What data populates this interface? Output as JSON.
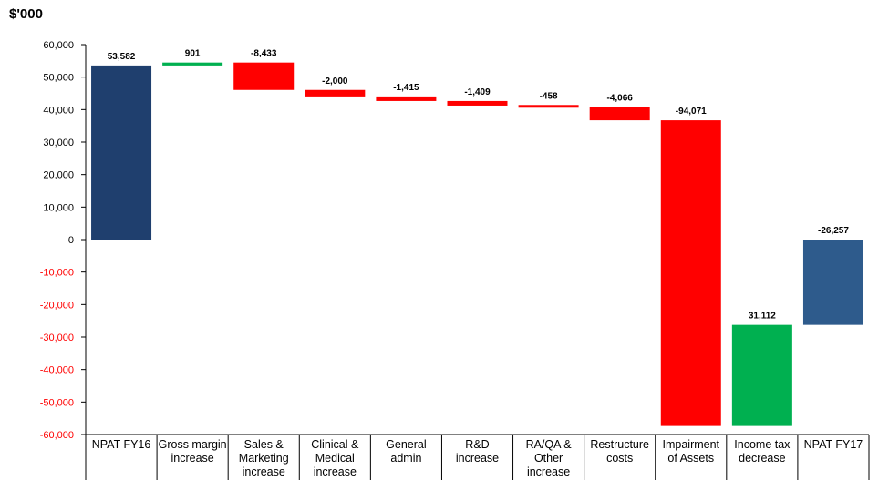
{
  "chart_data": {
    "type": "bar",
    "subtype": "waterfall",
    "ylabel": "$'000",
    "ylim": [
      -60000,
      60000
    ],
    "ytick_step": 10000,
    "y_ticks": [
      "60,000",
      "50,000",
      "40,000",
      "30,000",
      "20,000",
      "10,000",
      "0",
      "-10,000",
      "-20,000",
      "-30,000",
      "-40,000",
      "-50,000",
      "-60,000"
    ],
    "grid": false,
    "legend": "none",
    "categories": [
      [
        "NPAT FY16"
      ],
      [
        "Gross margin",
        "increase"
      ],
      [
        "Sales &",
        "Marketing",
        "increase"
      ],
      [
        "Clinical &",
        "Medical",
        "increase"
      ],
      [
        "General",
        "admin"
      ],
      [
        "R&D",
        "increase"
      ],
      [
        "RA/QA &",
        "Other",
        "increase"
      ],
      [
        "Restructure",
        "costs"
      ],
      [
        "Impairment",
        "of Assets"
      ],
      [
        "Income tax",
        "decrease"
      ],
      [
        "NPAT FY17"
      ]
    ],
    "values": [
      53582,
      901,
      -8433,
      -2000,
      -1415,
      -1409,
      -458,
      -4066,
      -94071,
      31112,
      -26257
    ],
    "bar_kind": [
      "total",
      "delta",
      "delta",
      "delta",
      "delta",
      "delta",
      "delta",
      "delta",
      "delta",
      "delta",
      "total"
    ],
    "data_labels": [
      "53,582",
      "901",
      "-8,433",
      "-2,000",
      "-1,415",
      "-1,409",
      "-458",
      "-4,066",
      "-94,071",
      "31,112",
      "-26,257"
    ],
    "colors": {
      "fy16_total": "#1f3f6e",
      "fy17_total": "#2e5b8c",
      "increase": "#00b050",
      "decrease": "#ff0000",
      "positive_tick": "#000000",
      "negative_tick": "#ff0000",
      "axis": "#000000"
    }
  }
}
